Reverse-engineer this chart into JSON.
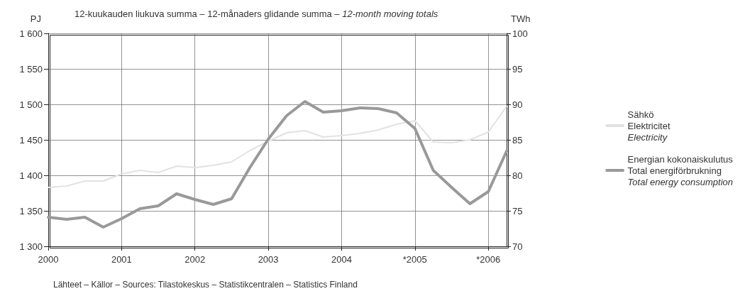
{
  "chart_data": {
    "type": "line",
    "title": "12-kuukauden liukuva summa – 12-månaders glidande summa – 12-month moving totals",
    "ylabel": "PJ",
    "y2label": "TWh",
    "annotations": [
      "Lähteet – Källor – Sources: Tilastokeskus – Statistikcentralen – Statistics Finland"
    ],
    "x": [
      2000,
      2000.25,
      2000.5,
      2000.75,
      2001,
      2001.25,
      2001.5,
      2001.75,
      2002,
      2002.25,
      2002.5,
      2002.75,
      2003,
      2003.25,
      2003.5,
      2003.75,
      2004,
      2004.25,
      2004.5,
      2004.75,
      2005,
      2005.25,
      2005.5,
      2005.75,
      2006,
      2006.25
    ],
    "series": [
      {
        "name": "Sähkö\nElektricitet\nElectricity",
        "color": "#e2e2e2",
        "axis": "y2",
        "values": [
          78.3,
          78.5,
          79.2,
          79.2,
          80.2,
          80.7,
          80.4,
          81.3,
          81.1,
          81.4,
          81.9,
          83.5,
          84.8,
          86.0,
          86.3,
          85.4,
          85.6,
          85.9,
          86.4,
          87.2,
          87.7,
          84.7,
          84.6,
          85.0,
          86.1,
          89.7
        ]
      },
      {
        "name": "Energian kokonaiskulutus\nTotal energiförbrukning\nTotal energy consumption",
        "color": "#999999",
        "values": [
          1341,
          1338,
          1341,
          1327,
          1339,
          1353,
          1357,
          1374,
          1366,
          1359,
          1367,
          1411,
          1451,
          1484,
          1504,
          1489,
          1491,
          1495,
          1494,
          1488,
          1466,
          1407,
          1383,
          1360,
          1377,
          1434
        ]
      }
    ],
    "xlim": [
      2000,
      2006.25
    ],
    "xticks": [
      2000,
      2001,
      2002,
      2003,
      2004,
      {
        "value": 2005,
        "label": "*2005"
      },
      {
        "value": 2006,
        "label": "*2006"
      }
    ],
    "ylim": [
      1300,
      1600
    ],
    "yticks": [
      {
        "value": 1300,
        "label": "1 300"
      },
      {
        "value": 1350,
        "label": "1 350"
      },
      {
        "value": 1400,
        "label": "1 400"
      },
      {
        "value": 1450,
        "label": "1 450"
      },
      {
        "value": 1500,
        "label": "1 500"
      },
      {
        "value": 1550,
        "label": "1 550"
      },
      {
        "value": 1600,
        "label": "1 600"
      }
    ],
    "y2lim": [
      70,
      100
    ],
    "y2ticks": [
      70,
      75,
      80,
      85,
      90,
      95,
      100
    ],
    "grid": true,
    "legend": "right",
    "marker": "none",
    "line_style": "solid"
  }
}
